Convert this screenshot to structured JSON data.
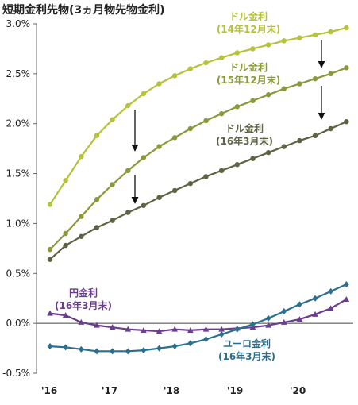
{
  "chart_data": {
    "type": "line",
    "title": "短期金利先物(3ヵ月物先物金利)",
    "yticks": [
      "3.0%",
      "2.5%",
      "2.0%",
      "1.5%",
      "1.0%",
      "0.5%",
      "0.0%",
      "-0.5%"
    ],
    "ylim": [
      -0.5,
      3.0
    ],
    "xticks": [
      "'16",
      "'17",
      "'18",
      "'19",
      "'20"
    ],
    "grid": false,
    "colors": {
      "usd_dec14": "#b5c23a",
      "usd_dec15": "#8a9a3a",
      "usd_mar16": "#5f6243",
      "jpy_mar16": "#6a3d8f",
      "eur_mar16": "#2b6f8f"
    },
    "series": [
      {
        "key": "usd_dec14",
        "name_line1": "ドル金利",
        "name_line2": "(14年12月末)",
        "marker": "circle",
        "values": [
          1.19,
          1.43,
          1.67,
          1.88,
          2.04,
          2.18,
          2.3,
          2.4,
          2.48,
          2.55,
          2.61,
          2.66,
          2.71,
          2.75,
          2.79,
          2.83,
          2.86,
          2.89,
          2.92,
          2.96
        ]
      },
      {
        "key": "usd_dec15",
        "name_line1": "ドル金利",
        "name_line2": "(15年12月末)",
        "marker": "circle",
        "values": [
          0.74,
          0.9,
          1.07,
          1.24,
          1.39,
          1.53,
          1.66,
          1.77,
          1.86,
          1.95,
          2.03,
          2.1,
          2.17,
          2.23,
          2.29,
          2.35,
          2.4,
          2.45,
          2.5,
          2.56
        ]
      },
      {
        "key": "usd_mar16",
        "name_line1": "ドル金利",
        "name_line2": "(16年3月末)",
        "marker": "circle",
        "values": [
          0.64,
          0.78,
          0.87,
          0.96,
          1.03,
          1.11,
          1.18,
          1.26,
          1.33,
          1.4,
          1.47,
          1.53,
          1.59,
          1.65,
          1.71,
          1.77,
          1.83,
          1.88,
          1.95,
          2.02
        ]
      },
      {
        "key": "jpy_mar16",
        "name_line1": "円金利",
        "name_line2": "(16年3月末)",
        "marker": "triangle",
        "values": [
          0.1,
          0.08,
          0.01,
          -0.02,
          -0.04,
          -0.06,
          -0.07,
          -0.08,
          -0.06,
          -0.07,
          -0.06,
          -0.06,
          -0.05,
          -0.04,
          -0.02,
          0.01,
          0.04,
          0.09,
          0.15,
          0.24
        ]
      },
      {
        "key": "eur_mar16",
        "name_line1": "ユーロ金利",
        "name_line2": "(16年3月末)",
        "marker": "diamond",
        "values": [
          -0.23,
          -0.24,
          -0.26,
          -0.28,
          -0.28,
          -0.28,
          -0.27,
          -0.25,
          -0.23,
          -0.2,
          -0.16,
          -0.11,
          -0.06,
          -0.01,
          0.05,
          0.12,
          0.19,
          0.25,
          0.32,
          0.39
        ]
      }
    ]
  }
}
